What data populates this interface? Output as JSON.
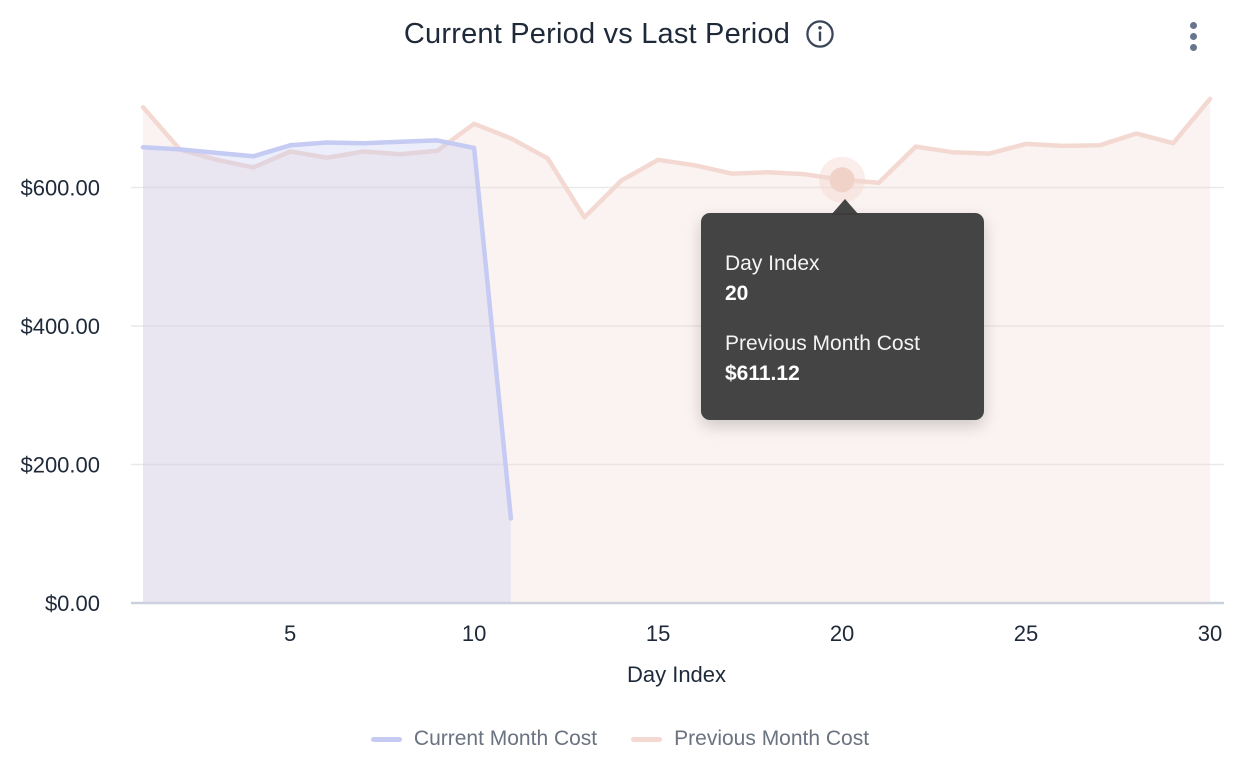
{
  "header": {
    "title": "Current Period vs Last Period",
    "info_icon": "info-circle",
    "menu_icon": "kebab-vertical"
  },
  "chart_data": {
    "type": "area",
    "title": "Current Period vs Last Period",
    "xlabel": "Day Index",
    "ylabel": "",
    "x": [
      1,
      2,
      3,
      4,
      5,
      6,
      7,
      8,
      9,
      10,
      11,
      12,
      13,
      14,
      15,
      16,
      17,
      18,
      19,
      20,
      21,
      22,
      23,
      24,
      25,
      26,
      27,
      28,
      29,
      30
    ],
    "series": [
      {
        "name": "Current Month Cost",
        "color": "#c5cbf3",
        "fill": "rgba(197,203,243,0.32)",
        "values": [
          658,
          655,
          650,
          645,
          661,
          665,
          664,
          666,
          668,
          657,
          122
        ]
      },
      {
        "name": "Previous Month Cost",
        "color": "#f3d9d2",
        "fill": "rgba(243,216,208,0.30)",
        "values": [
          716,
          655,
          640,
          629,
          652,
          643,
          652,
          648,
          653,
          692,
          671,
          642,
          557,
          610,
          640,
          632,
          620,
          622,
          619,
          611.12,
          607,
          659,
          651,
          649,
          663,
          660,
          661,
          678,
          664,
          728
        ]
      }
    ],
    "xticks": [
      5,
      10,
      15,
      20,
      25,
      30
    ],
    "yticks": [
      {
        "value": 0,
        "label": "$0.00"
      },
      {
        "value": 200,
        "label": "$200.00"
      },
      {
        "value": 400,
        "label": "$400.00"
      },
      {
        "value": 600,
        "label": "$600.00"
      }
    ],
    "ylim": [
      0,
      740
    ],
    "grid": true,
    "legend_position": "bottom",
    "highlight": {
      "series": "Previous Month Cost",
      "x": 20,
      "value": 611.12
    }
  },
  "tooltip": {
    "x_label": "Day Index",
    "x_value": "20",
    "series_label": "Previous Month Cost",
    "series_value": "$611.12"
  },
  "legend": {
    "items": [
      {
        "label": "Current Month Cost",
        "color": "#c5cbf3"
      },
      {
        "label": "Previous Month Cost",
        "color": "#f3d9d2"
      }
    ]
  }
}
